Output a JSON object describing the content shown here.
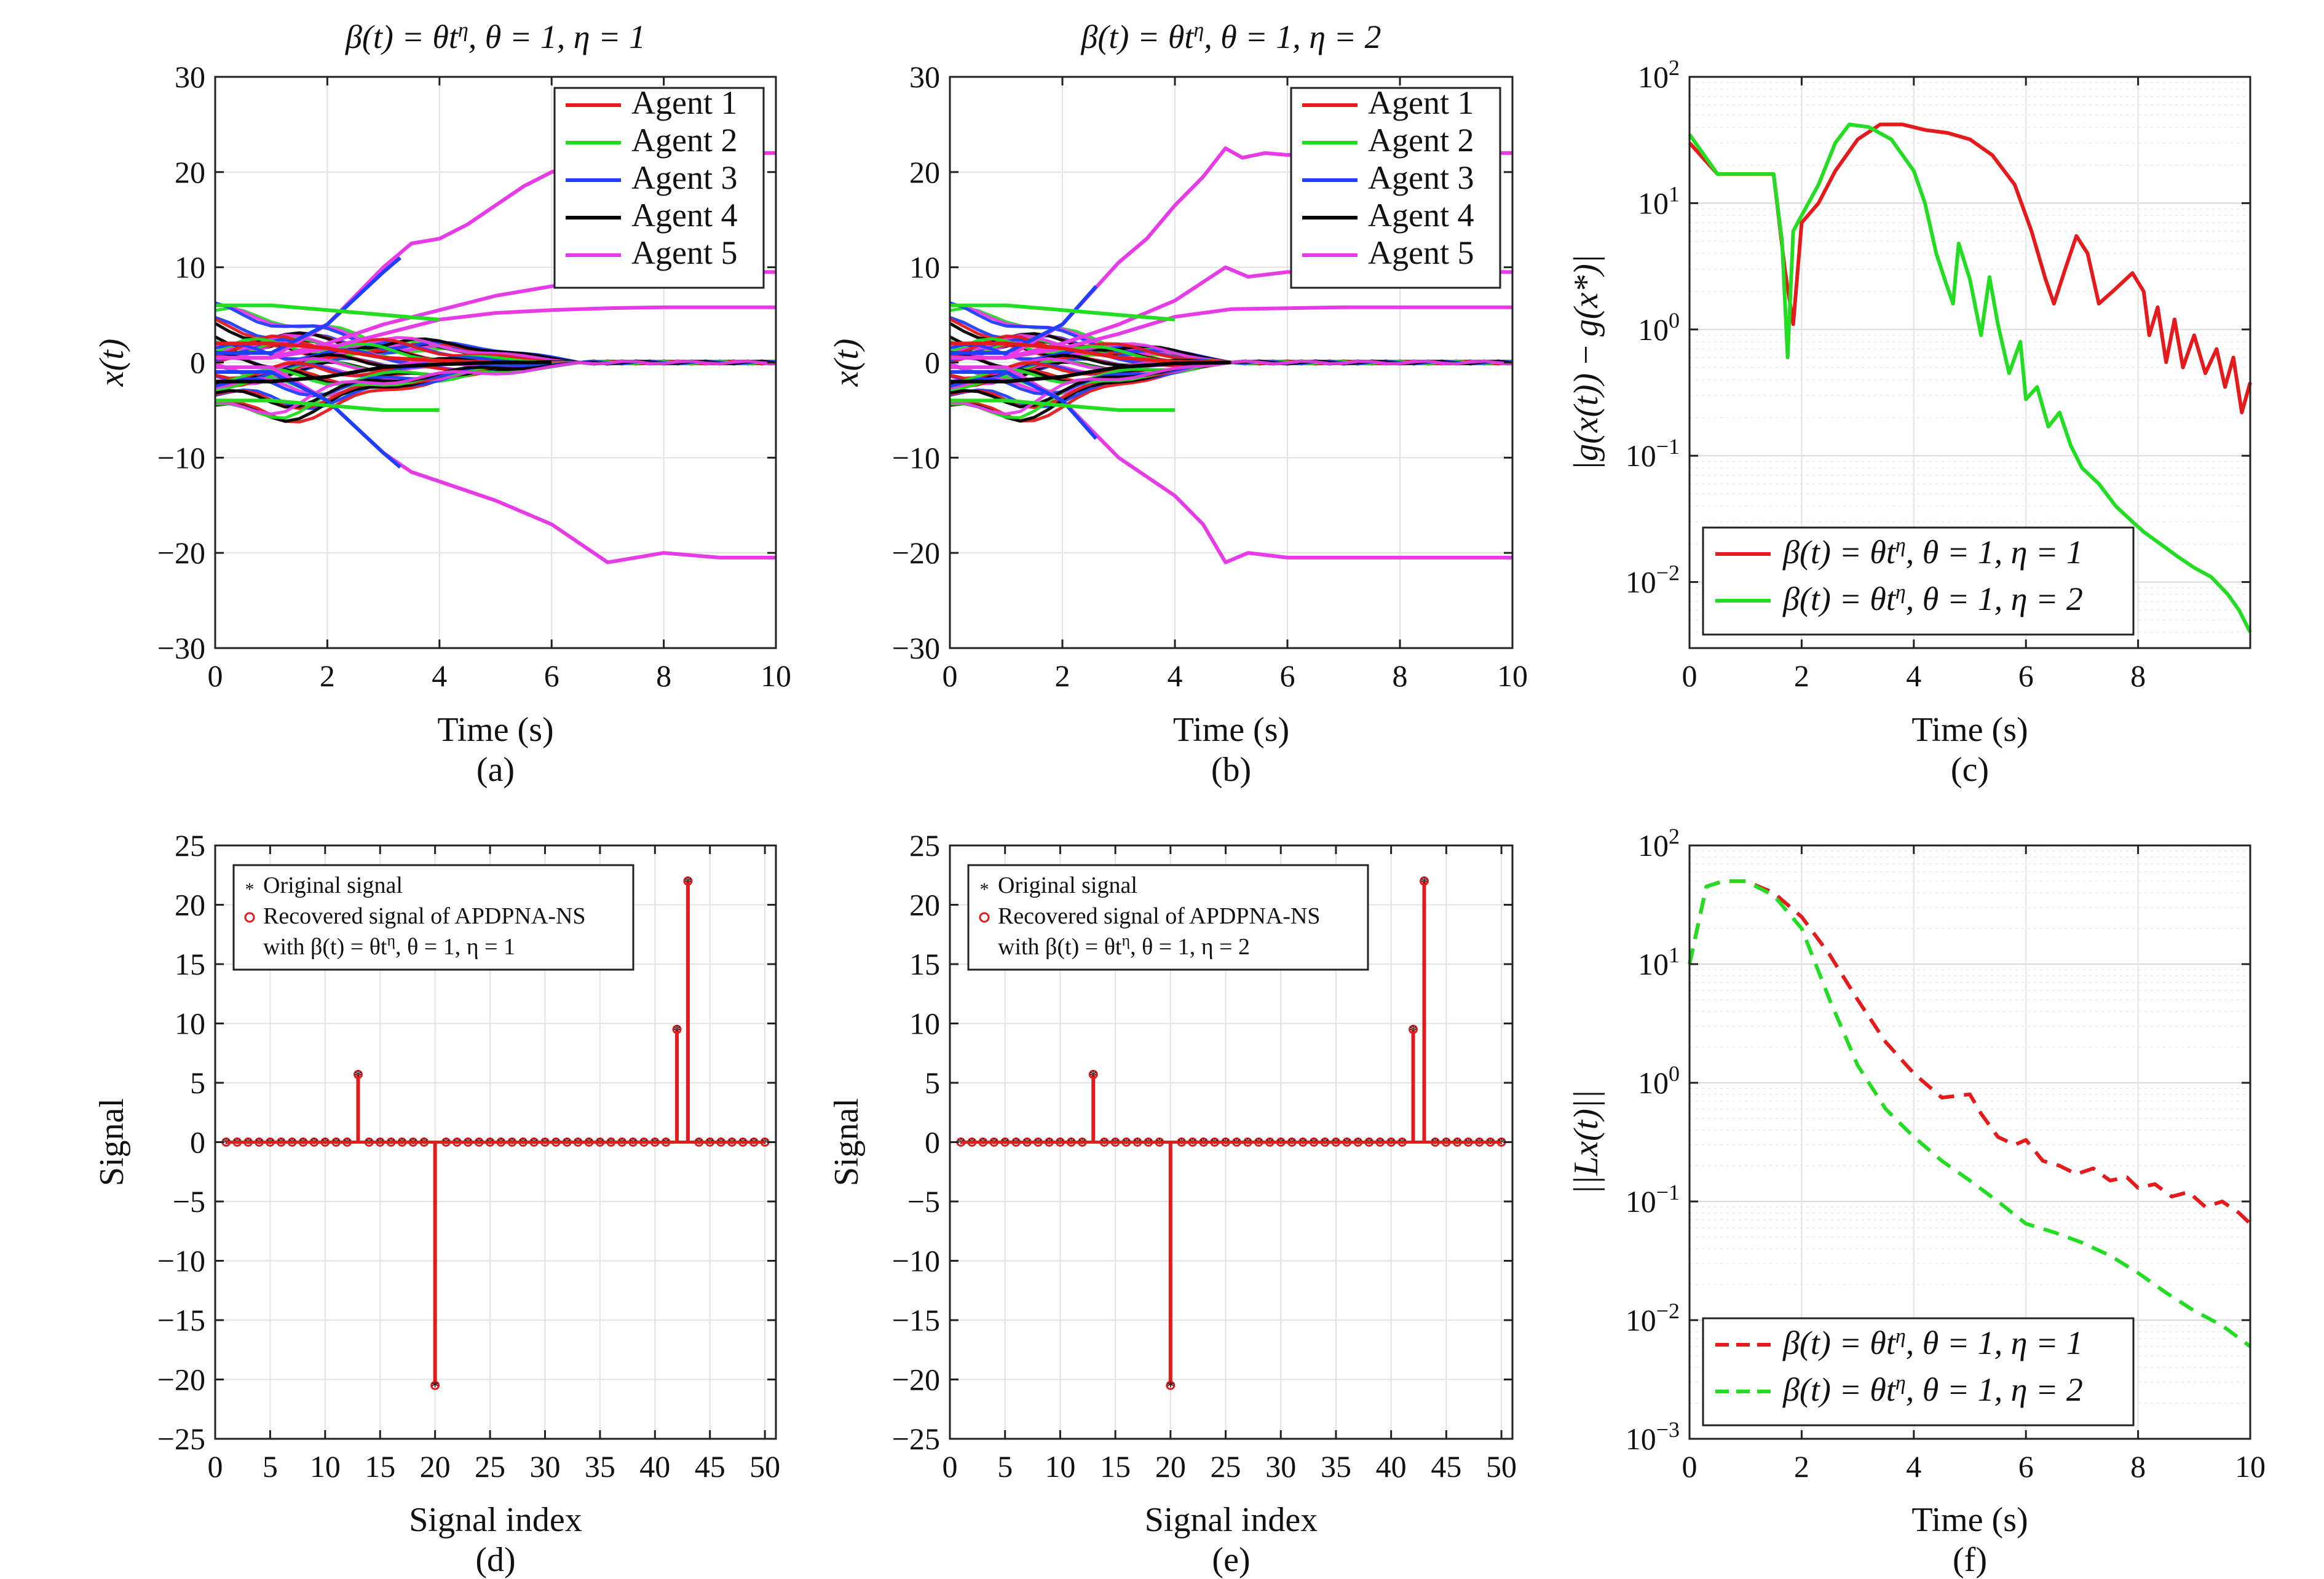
{
  "chart_data": [
    {
      "panel": "a",
      "type": "line",
      "caption": "(a)",
      "title": "β(t) = θtη, θ = 1, η = 1",
      "xlabel": "Time (s)",
      "ylabel": "x(t)",
      "xlim": [
        0,
        10
      ],
      "ylim": [
        -30,
        30
      ],
      "xticks": [
        "0",
        "2",
        "4",
        "6",
        "8",
        "10"
      ],
      "yticks": [
        "−30",
        "−20",
        "−10",
        "0",
        "10",
        "20",
        "30"
      ],
      "grid": true,
      "legend_position": "top-right",
      "legend": [
        {
          "name": "Agent 1",
          "color": "#e41a1c"
        },
        {
          "name": "Agent 2",
          "color": "#22dd22"
        },
        {
          "name": "Agent 3",
          "color": "#1f3fff"
        },
        {
          "name": "Agent 4",
          "color": "#000000"
        },
        {
          "name": "Agent 5",
          "color": "#e83be8"
        }
      ],
      "series": [
        {
          "color": "#e83be8",
          "x": [
            0,
            1,
            2,
            3,
            3.5,
            4,
            4.5,
            5,
            5.5,
            6,
            7,
            8,
            9,
            10
          ],
          "values": [
            0.5,
            0.5,
            4,
            10,
            12.5,
            13,
            14.5,
            16.5,
            18.5,
            20,
            21.5,
            22,
            22,
            22
          ]
        },
        {
          "color": "#e83be8",
          "x": [
            0,
            1,
            2,
            3,
            4,
            5,
            6,
            7,
            8,
            9,
            10
          ],
          "values": [
            0.5,
            0.5,
            2,
            4,
            5.5,
            7,
            8,
            8.8,
            9.3,
            9.5,
            9.5
          ]
        },
        {
          "color": "#e83be8",
          "x": [
            0,
            1,
            2,
            3,
            4,
            5,
            6,
            7,
            8,
            9,
            10
          ],
          "values": [
            0.5,
            0.5,
            1.5,
            3,
            4.5,
            5.2,
            5.5,
            5.7,
            5.8,
            5.8,
            5.8
          ]
        },
        {
          "color": "#e83be8",
          "x": [
            0,
            1,
            2,
            3,
            3.5,
            4,
            4.5,
            5,
            6,
            7,
            8,
            9,
            10
          ],
          "values": [
            -0.5,
            -0.5,
            -4,
            -9.5,
            -11.5,
            -12.5,
            -13.5,
            -14.5,
            -17,
            -21,
            -20,
            -20.5,
            -20.5
          ]
        },
        {
          "color": "#1f3fff",
          "x": [
            0,
            1,
            2,
            3,
            3.3
          ],
          "values": [
            1,
            1,
            4,
            9.5,
            11
          ]
        },
        {
          "color": "#1f3fff",
          "x": [
            0,
            1,
            2,
            3,
            3.3
          ],
          "values": [
            -1,
            -1,
            -4,
            -9.5,
            -11
          ]
        },
        {
          "color": "#22dd22",
          "x": [
            0,
            1,
            2,
            3,
            4
          ],
          "values": [
            6,
            6,
            5.5,
            5,
            4.5
          ]
        },
        {
          "color": "#22dd22",
          "x": [
            0,
            1,
            2,
            3,
            4
          ],
          "values": [
            -4,
            -4,
            -4.5,
            -5,
            -5
          ]
        },
        {
          "color": "#e41a1c",
          "x": [
            0,
            1,
            2,
            3,
            4,
            5,
            6
          ],
          "values": [
            2,
            2,
            1.5,
            0.5,
            0.2,
            0,
            0
          ]
        },
        {
          "color": "#000000",
          "x": [
            0,
            1,
            2,
            3,
            4,
            5,
            6
          ],
          "values": [
            -2,
            -2,
            -1.5,
            -0.5,
            -0.2,
            0,
            0
          ]
        }
      ]
    },
    {
      "panel": "b",
      "type": "line",
      "caption": "(b)",
      "title": "β(t) = θtη, θ = 1, η = 2",
      "xlabel": "Time (s)",
      "ylabel": "x(t)",
      "xlim": [
        0,
        10
      ],
      "ylim": [
        -30,
        30
      ],
      "xticks": [
        "0",
        "2",
        "4",
        "6",
        "8",
        "10"
      ],
      "yticks": [
        "−30",
        "−20",
        "−10",
        "0",
        "10",
        "20",
        "30"
      ],
      "grid": true,
      "legend_position": "top-right",
      "legend": [
        {
          "name": "Agent 1",
          "color": "#e41a1c"
        },
        {
          "name": "Agent 2",
          "color": "#22dd22"
        },
        {
          "name": "Agent 3",
          "color": "#1f3fff"
        },
        {
          "name": "Agent 4",
          "color": "#000000"
        },
        {
          "name": "Agent 5",
          "color": "#e83be8"
        }
      ],
      "series": [
        {
          "color": "#e83be8",
          "x": [
            0,
            1,
            2,
            3,
            3.5,
            4,
            4.5,
            4.9,
            5.2,
            5.6,
            6,
            7,
            8,
            9,
            10
          ],
          "values": [
            0.5,
            0.5,
            4,
            10.5,
            13,
            16.5,
            19.5,
            22.5,
            21.5,
            22,
            21.8,
            22,
            22,
            22,
            22
          ]
        },
        {
          "color": "#e83be8",
          "x": [
            0,
            1,
            2,
            3,
            4,
            4.9,
            5.3,
            6,
            7,
            8,
            9,
            10
          ],
          "values": [
            0.5,
            0.5,
            2,
            4,
            6.5,
            10,
            9,
            9.5,
            9.5,
            9.5,
            9.5,
            9.5
          ]
        },
        {
          "color": "#e83be8",
          "x": [
            0,
            1,
            2,
            3,
            4,
            5,
            6,
            7,
            8,
            9,
            10
          ],
          "values": [
            0.5,
            0.5,
            1.5,
            3,
            4.8,
            5.6,
            5.7,
            5.8,
            5.8,
            5.8,
            5.8
          ]
        },
        {
          "color": "#e83be8",
          "x": [
            0,
            1,
            2,
            3,
            3.5,
            4,
            4.5,
            4.9,
            5.3,
            6,
            7,
            8,
            9,
            10
          ],
          "values": [
            -0.5,
            -0.5,
            -4,
            -10,
            -12,
            -14,
            -17,
            -21,
            -20,
            -20.5,
            -20.5,
            -20.5,
            -20.5,
            -20.5
          ]
        },
        {
          "color": "#1f3fff",
          "x": [
            0,
            1,
            2,
            2.6
          ],
          "values": [
            1,
            1,
            4,
            8
          ]
        },
        {
          "color": "#1f3fff",
          "x": [
            0,
            1,
            2,
            2.6
          ],
          "values": [
            -1,
            -1,
            -4,
            -8
          ]
        },
        {
          "color": "#22dd22",
          "x": [
            0,
            1,
            2,
            3,
            4
          ],
          "values": [
            6,
            6,
            5.5,
            5,
            4.5
          ]
        },
        {
          "color": "#22dd22",
          "x": [
            0,
            1,
            2,
            3,
            4
          ],
          "values": [
            -4,
            -4,
            -4.5,
            -5,
            -5
          ]
        },
        {
          "color": "#e41a1c",
          "x": [
            0,
            1,
            2,
            3,
            4,
            5
          ],
          "values": [
            2,
            2,
            1.5,
            0.5,
            0.1,
            0
          ]
        },
        {
          "color": "#000000",
          "x": [
            0,
            1,
            2,
            3,
            4,
            5
          ],
          "values": [
            -2,
            -2,
            -1.5,
            -0.5,
            -0.1,
            0
          ]
        }
      ]
    },
    {
      "panel": "c",
      "type": "line",
      "caption": "(c)",
      "xlabel": "Time (s)",
      "ylabel": "|g(x(t)) − g(x*)|",
      "yscale": "log",
      "xlim": [
        0,
        10
      ],
      "ylim": [
        0.003,
        100
      ],
      "xticks": [
        "0",
        "2",
        "4",
        "6",
        "8"
      ],
      "yticks": [
        "10^-2",
        "10^-1",
        "10^0",
        "10^1",
        "10^2"
      ],
      "grid": true,
      "legend_position": "bottom-left",
      "series": [
        {
          "name": "β(t) = θtη, θ = 1, η = 1",
          "color": "#e41a1c",
          "dash": "solid",
          "x": [
            0,
            0.5,
            1.0,
            1.5,
            1.7,
            1.85,
            2.0,
            2.3,
            2.6,
            3.0,
            3.4,
            3.8,
            4.2,
            4.6,
            5.0,
            5.4,
            5.8,
            6.1,
            6.35,
            6.5,
            6.7,
            6.9,
            7.1,
            7.3,
            7.6,
            7.9,
            8.1,
            8.2,
            8.35,
            8.5,
            8.65,
            8.8,
            9.0,
            9.2,
            9.4,
            9.55,
            9.7,
            9.85,
            10.0
          ],
          "values": [
            30,
            17,
            17,
            17,
            3,
            1.1,
            7,
            10,
            18,
            32,
            42,
            42,
            38,
            36,
            32,
            24,
            14,
            6,
            2.5,
            1.6,
            3,
            5.5,
            4,
            1.6,
            2.1,
            2.8,
            2,
            0.9,
            1.5,
            0.55,
            1.2,
            0.5,
            0.9,
            0.45,
            0.7,
            0.35,
            0.6,
            0.22,
            0.38
          ]
        },
        {
          "name": "β(t) = θtη, θ = 1, η = 2",
          "color": "#22dd22",
          "dash": "solid",
          "x": [
            0,
            0.5,
            1.0,
            1.5,
            1.65,
            1.75,
            1.85,
            2.0,
            2.3,
            2.6,
            2.85,
            3.2,
            3.6,
            4.0,
            4.2,
            4.4,
            4.55,
            4.7,
            4.8,
            5.0,
            5.2,
            5.35,
            5.5,
            5.7,
            5.9,
            6.0,
            6.2,
            6.4,
            6.6,
            6.8,
            7.0,
            7.3,
            7.6,
            7.9,
            8.1,
            8.4,
            8.7,
            9.0,
            9.3,
            9.6,
            9.8,
            10.0
          ],
          "values": [
            35,
            17,
            17,
            17,
            5,
            0.6,
            6,
            8,
            14,
            30,
            42,
            40,
            32,
            18,
            10,
            4,
            2.5,
            1.6,
            4.8,
            2.5,
            0.9,
            2.6,
            1.1,
            0.45,
            0.8,
            0.28,
            0.35,
            0.17,
            0.22,
            0.12,
            0.08,
            0.06,
            0.04,
            0.03,
            0.025,
            0.02,
            0.016,
            0.013,
            0.011,
            0.008,
            0.006,
            0.004
          ]
        }
      ]
    },
    {
      "panel": "d",
      "type": "stem",
      "caption": "(d)",
      "xlabel": "Signal index",
      "ylabel": "Signal",
      "xlim": [
        0,
        51
      ],
      "ylim": [
        -25,
        25
      ],
      "xticks": [
        "0",
        "5",
        "10",
        "15",
        "20",
        "25",
        "30",
        "35",
        "40",
        "45",
        "50"
      ],
      "yticks": [
        "−25",
        "−20",
        "−15",
        "−10",
        "−5",
        "0",
        "5",
        "10",
        "15",
        "20",
        "25"
      ],
      "grid": true,
      "legend_position": "top-left",
      "legend": [
        {
          "marker": "star",
          "text": "Original signal"
        },
        {
          "marker": "circle",
          "text": "Recovered signal of APDPNA-NS"
        },
        {
          "marker": "none",
          "text": "with β(t) = θtη, θ = 1, η = 1"
        }
      ],
      "n": 50,
      "nonzero": [
        {
          "index": 13,
          "value": 5.7
        },
        {
          "index": 20,
          "value": -20.5
        },
        {
          "index": 42,
          "value": 9.5
        },
        {
          "index": 43,
          "value": 22
        }
      ]
    },
    {
      "panel": "e",
      "type": "stem",
      "caption": "(e)",
      "xlabel": "Signal index",
      "ylabel": "Signal",
      "xlim": [
        0,
        51
      ],
      "ylim": [
        -25,
        25
      ],
      "xticks": [
        "0",
        "5",
        "10",
        "15",
        "20",
        "25",
        "30",
        "35",
        "40",
        "45",
        "50"
      ],
      "yticks": [
        "−25",
        "−20",
        "−15",
        "−10",
        "−5",
        "0",
        "5",
        "10",
        "15",
        "20",
        "25"
      ],
      "grid": true,
      "legend_position": "top-left",
      "legend": [
        {
          "marker": "star",
          "text": "Original signal"
        },
        {
          "marker": "circle",
          "text": "Recovered signal of APDPNA-NS"
        },
        {
          "marker": "none",
          "text": "with β(t) = θtη, θ = 1, η = 2"
        }
      ],
      "n": 50,
      "nonzero": [
        {
          "index": 13,
          "value": 5.7
        },
        {
          "index": 20,
          "value": -20.5
        },
        {
          "index": 42,
          "value": 9.5
        },
        {
          "index": 43,
          "value": 22
        }
      ]
    },
    {
      "panel": "f",
      "type": "line",
      "caption": "(f)",
      "xlabel": "Time (s)",
      "ylabel": "||Lx(t)||",
      "yscale": "log",
      "xlim": [
        0,
        10
      ],
      "ylim": [
        0.001,
        100
      ],
      "xticks": [
        "0",
        "2",
        "4",
        "6",
        "8",
        "10"
      ],
      "yticks": [
        "10^-3",
        "10^-2",
        "10^-1",
        "10^0",
        "10^1",
        "10^2"
      ],
      "grid": true,
      "legend_position": "bottom-left",
      "series": [
        {
          "name": "β(t) = θtη, θ = 1, η = 1",
          "color": "#e41a1c",
          "dash": "dashed",
          "x": [
            0,
            0.3,
            0.6,
            1.0,
            1.5,
            2.0,
            2.5,
            3.0,
            3.5,
            4.0,
            4.5,
            5.0,
            5.2,
            5.5,
            5.8,
            6.0,
            6.3,
            6.6,
            6.9,
            7.2,
            7.5,
            7.8,
            8.0,
            8.3,
            8.6,
            8.9,
            9.2,
            9.5,
            9.8,
            10.0
          ],
          "values": [
            10,
            45,
            50,
            50,
            40,
            25,
            12,
            5,
            2.2,
            1.2,
            0.75,
            0.8,
            0.55,
            0.35,
            0.3,
            0.33,
            0.22,
            0.2,
            0.17,
            0.19,
            0.15,
            0.16,
            0.13,
            0.14,
            0.11,
            0.12,
            0.09,
            0.1,
            0.08,
            0.065
          ]
        },
        {
          "name": "β(t) = θtη, θ = 1, η = 2",
          "color": "#22dd22",
          "dash": "dashed",
          "x": [
            0,
            0.3,
            0.6,
            1.0,
            1.5,
            2.0,
            2.5,
            3.0,
            3.5,
            4.0,
            4.5,
            5.0,
            5.5,
            6.0,
            6.5,
            7.0,
            7.5,
            8.0,
            8.5,
            9.0,
            9.5,
            10.0
          ],
          "values": [
            10,
            45,
            50,
            50,
            38,
            20,
            5,
            1.4,
            0.6,
            0.35,
            0.22,
            0.15,
            0.1,
            0.065,
            0.055,
            0.045,
            0.035,
            0.025,
            0.017,
            0.012,
            0.009,
            0.006
          ]
        }
      ]
    }
  ]
}
